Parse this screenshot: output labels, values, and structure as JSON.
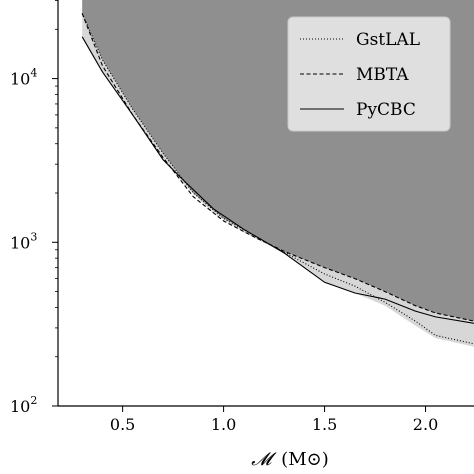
{
  "chart_data": {
    "type": "line",
    "xlabel_main": "𝓜",
    "xlabel_unit": "(M⊙)",
    "ylabel": "",
    "xlim": [
      0.18,
      2.24
    ],
    "ylim_log10": [
      2,
      4.48
    ],
    "y_log_scale": true,
    "grid": false,
    "legend_position": "top-right",
    "x_ticks": [
      {
        "value": 0.5,
        "label": "0.5"
      },
      {
        "value": 1.0,
        "label": "1.0"
      },
      {
        "value": 1.5,
        "label": "1.5"
      },
      {
        "value": 2.0,
        "label": "2.0"
      }
    ],
    "y_ticks": [
      {
        "value": 100,
        "base": "10",
        "exp": "2"
      },
      {
        "value": 1000,
        "base": "10",
        "exp": "3"
      },
      {
        "value": 10000,
        "base": "10",
        "exp": "4"
      }
    ],
    "series": [
      {
        "name": "GstLAL",
        "style": "dotted",
        "x": [
          0.3,
          0.4,
          0.55,
          0.7,
          0.85,
          1.0,
          1.15,
          1.3,
          1.5,
          1.65,
          1.8,
          1.95,
          2.05,
          2.24
        ],
        "y": [
          25000,
          13000,
          6500,
          3500,
          2000,
          1400,
          1100,
          870,
          640,
          540,
          430,
          330,
          270,
          240
        ]
      },
      {
        "name": "MBTA",
        "style": "dashed",
        "x": [
          0.3,
          0.4,
          0.55,
          0.7,
          0.85,
          1.0,
          1.15,
          1.3,
          1.5,
          1.65,
          1.8,
          1.95,
          2.05,
          2.24
        ],
        "y": [
          25000,
          12000,
          6000,
          3300,
          1900,
          1350,
          1080,
          880,
          700,
          600,
          500,
          410,
          370,
          330
        ]
      },
      {
        "name": "PyCBC",
        "style": "solid",
        "x": [
          0.3,
          0.4,
          0.55,
          0.7,
          0.8,
          0.95,
          1.1,
          1.3,
          1.5,
          1.65,
          1.8,
          1.95,
          2.05,
          2.24
        ],
        "y": [
          18000,
          11000,
          6000,
          3200,
          2400,
          1600,
          1200,
          860,
          570,
          490,
          450,
          380,
          350,
          320
        ]
      }
    ],
    "lower_band": {
      "x": [
        0.3,
        0.4,
        0.55,
        0.7,
        0.8,
        0.95,
        1.1,
        1.3,
        1.5,
        1.65,
        1.8,
        1.95,
        2.05,
        2.24
      ],
      "y": [
        18000,
        11000,
        6000,
        3200,
        2300,
        1500,
        1150,
        860,
        570,
        490,
        410,
        310,
        260,
        230
      ]
    },
    "colors": {
      "excluded_region": "#8f8f8f",
      "uncertainty_band": "#d7d7d7",
      "legend_bg": "#e8e8e8",
      "axis": "#000000"
    }
  }
}
